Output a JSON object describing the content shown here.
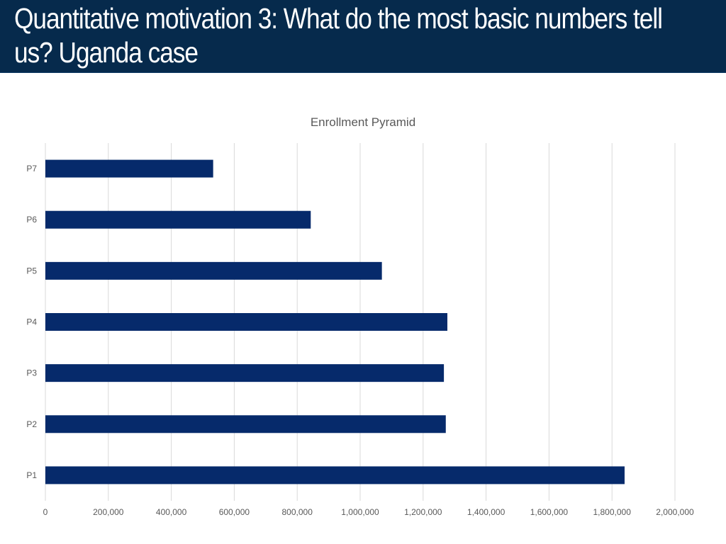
{
  "slide": {
    "title": "Quantitative motivation 3: What do the most basic numbers tell us? Uganda case"
  },
  "colors": {
    "header_bg": "#062a4c",
    "bar": "#062a6b",
    "grid": "#d9d9d9",
    "text": "#595959"
  },
  "chart_data": {
    "type": "bar",
    "orientation": "horizontal",
    "title": "Enrollment Pyramid",
    "xlabel": "",
    "ylabel": "",
    "categories": [
      "P1",
      "P2",
      "P3",
      "P4",
      "P5",
      "P6",
      "P7"
    ],
    "values": [
      1840000,
      1272000,
      1266000,
      1277000,
      1069000,
      843000,
      533000
    ],
    "xlim": [
      0,
      2000000
    ],
    "x_ticks": [
      0,
      200000,
      400000,
      600000,
      800000,
      1000000,
      1200000,
      1400000,
      1600000,
      1800000,
      2000000
    ],
    "x_tick_labels": [
      "0",
      "200,000",
      "400,000",
      "600,000",
      "800,000",
      "1,000,000",
      "1,200,000",
      "1,400,000",
      "1,600,000",
      "1,800,000",
      "2,000,000"
    ],
    "grid": true,
    "legend": "none"
  }
}
